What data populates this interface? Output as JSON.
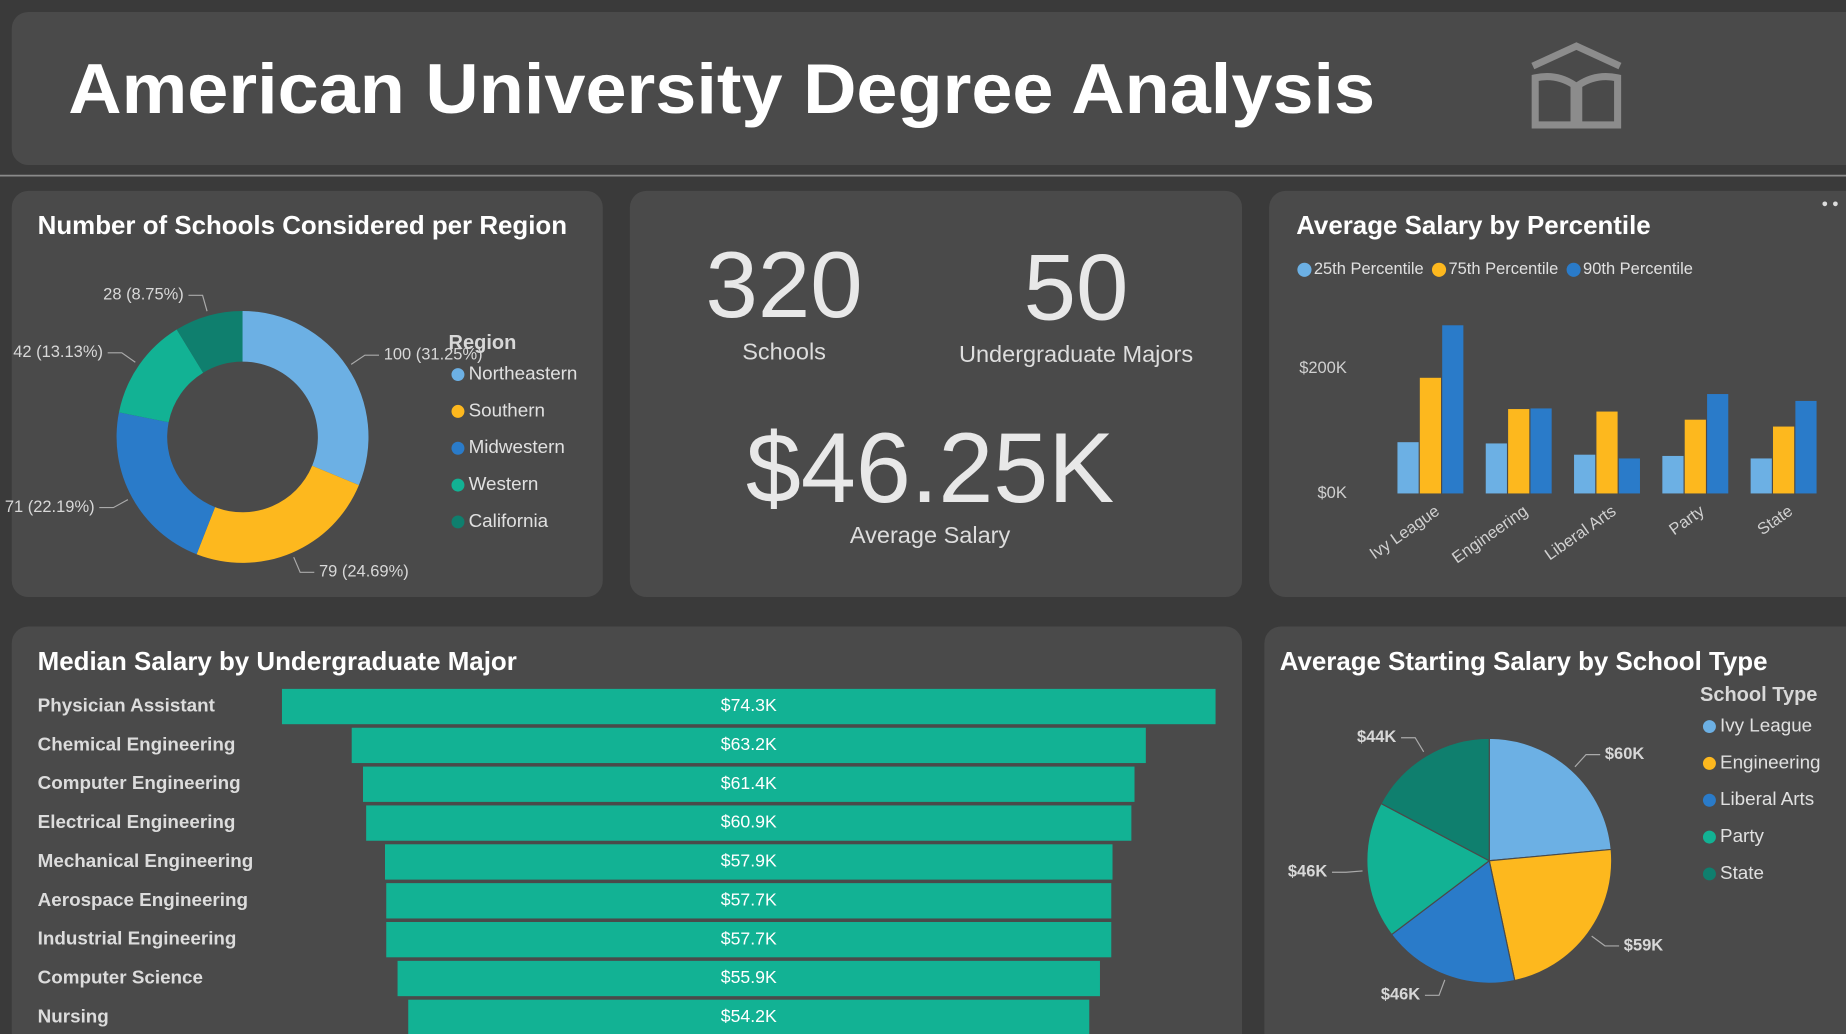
{
  "header": {
    "title": "American University Degree Analysis"
  },
  "kpis": [
    {
      "value": "320",
      "label": "Schools"
    },
    {
      "value": "50",
      "label": "Undergraduate Majors"
    },
    {
      "value": "$46.25K",
      "label": "Average Salary"
    }
  ],
  "chart_data": [
    {
      "type": "donut",
      "title": "Number of Schools Considered per Region",
      "legend_title": "Region",
      "categories": [
        "Northeastern",
        "Southern",
        "Midwestern",
        "Western",
        "California"
      ],
      "values": [
        100,
        79,
        71,
        42,
        28
      ],
      "value_labels": [
        "100 (31.25%)",
        "79 (24.69%)",
        "71 (22.19%)",
        "42 (13.13%)",
        "28 (8.75%)"
      ],
      "colors": [
        "#6cb0e4",
        "#fdb81e",
        "#2a7bc9",
        "#12b294",
        "#0f7f6e"
      ]
    },
    {
      "type": "bar",
      "title": "Average Salary by Percentile",
      "categories": [
        "Ivy League",
        "Engineering",
        "Liberal Arts",
        "Party",
        "State"
      ],
      "series": [
        {
          "name": "25th Percentile",
          "color": "#6cb0e4",
          "values": [
            82000,
            80000,
            62000,
            60000,
            56000
          ]
        },
        {
          "name": "75th Percentile",
          "color": "#fdb81e",
          "values": [
            185000,
            135000,
            131000,
            118000,
            107000
          ]
        },
        {
          "name": "90th Percentile",
          "color": "#2a7bc9",
          "values": [
            269000,
            136000,
            56000,
            159000,
            148000
          ]
        }
      ],
      "ylim": [
        0,
        290000
      ],
      "yticks": [
        {
          "value": 0,
          "label": "$0K"
        },
        {
          "value": 200000,
          "label": "$200K"
        }
      ]
    },
    {
      "type": "funnel",
      "title": "Median Salary by Undergraduate Major",
      "categories": [
        "Physician Assistant",
        "Chemical Engineering",
        "Computer Engineering",
        "Electrical Engineering",
        "Mechanical Engineering",
        "Aerospace Engineering",
        "Industrial Engineering",
        "Computer Science",
        "Nursing"
      ],
      "values": [
        74300,
        63200,
        61400,
        60900,
        57900,
        57700,
        57700,
        55900,
        54200
      ],
      "value_labels": [
        "$74.3K",
        "$63.2K",
        "$61.4K",
        "$60.9K",
        "$57.9K",
        "$57.7K",
        "$57.7K",
        "$55.9K",
        "$54.2K"
      ],
      "color": "#12b294"
    },
    {
      "type": "pie",
      "title": "Average Starting Salary by School Type",
      "legend_title": "School Type",
      "categories": [
        "Ivy League",
        "Engineering",
        "Liberal Arts",
        "Party",
        "State"
      ],
      "values": [
        60000,
        59000,
        46000,
        46000,
        44000
      ],
      "value_labels": [
        "$60K",
        "$59K",
        "$46K",
        "$46K",
        "$44K"
      ],
      "colors": [
        "#6cb0e4",
        "#fdb81e",
        "#2a7bc9",
        "#12b294",
        "#0f7f6e"
      ]
    }
  ]
}
